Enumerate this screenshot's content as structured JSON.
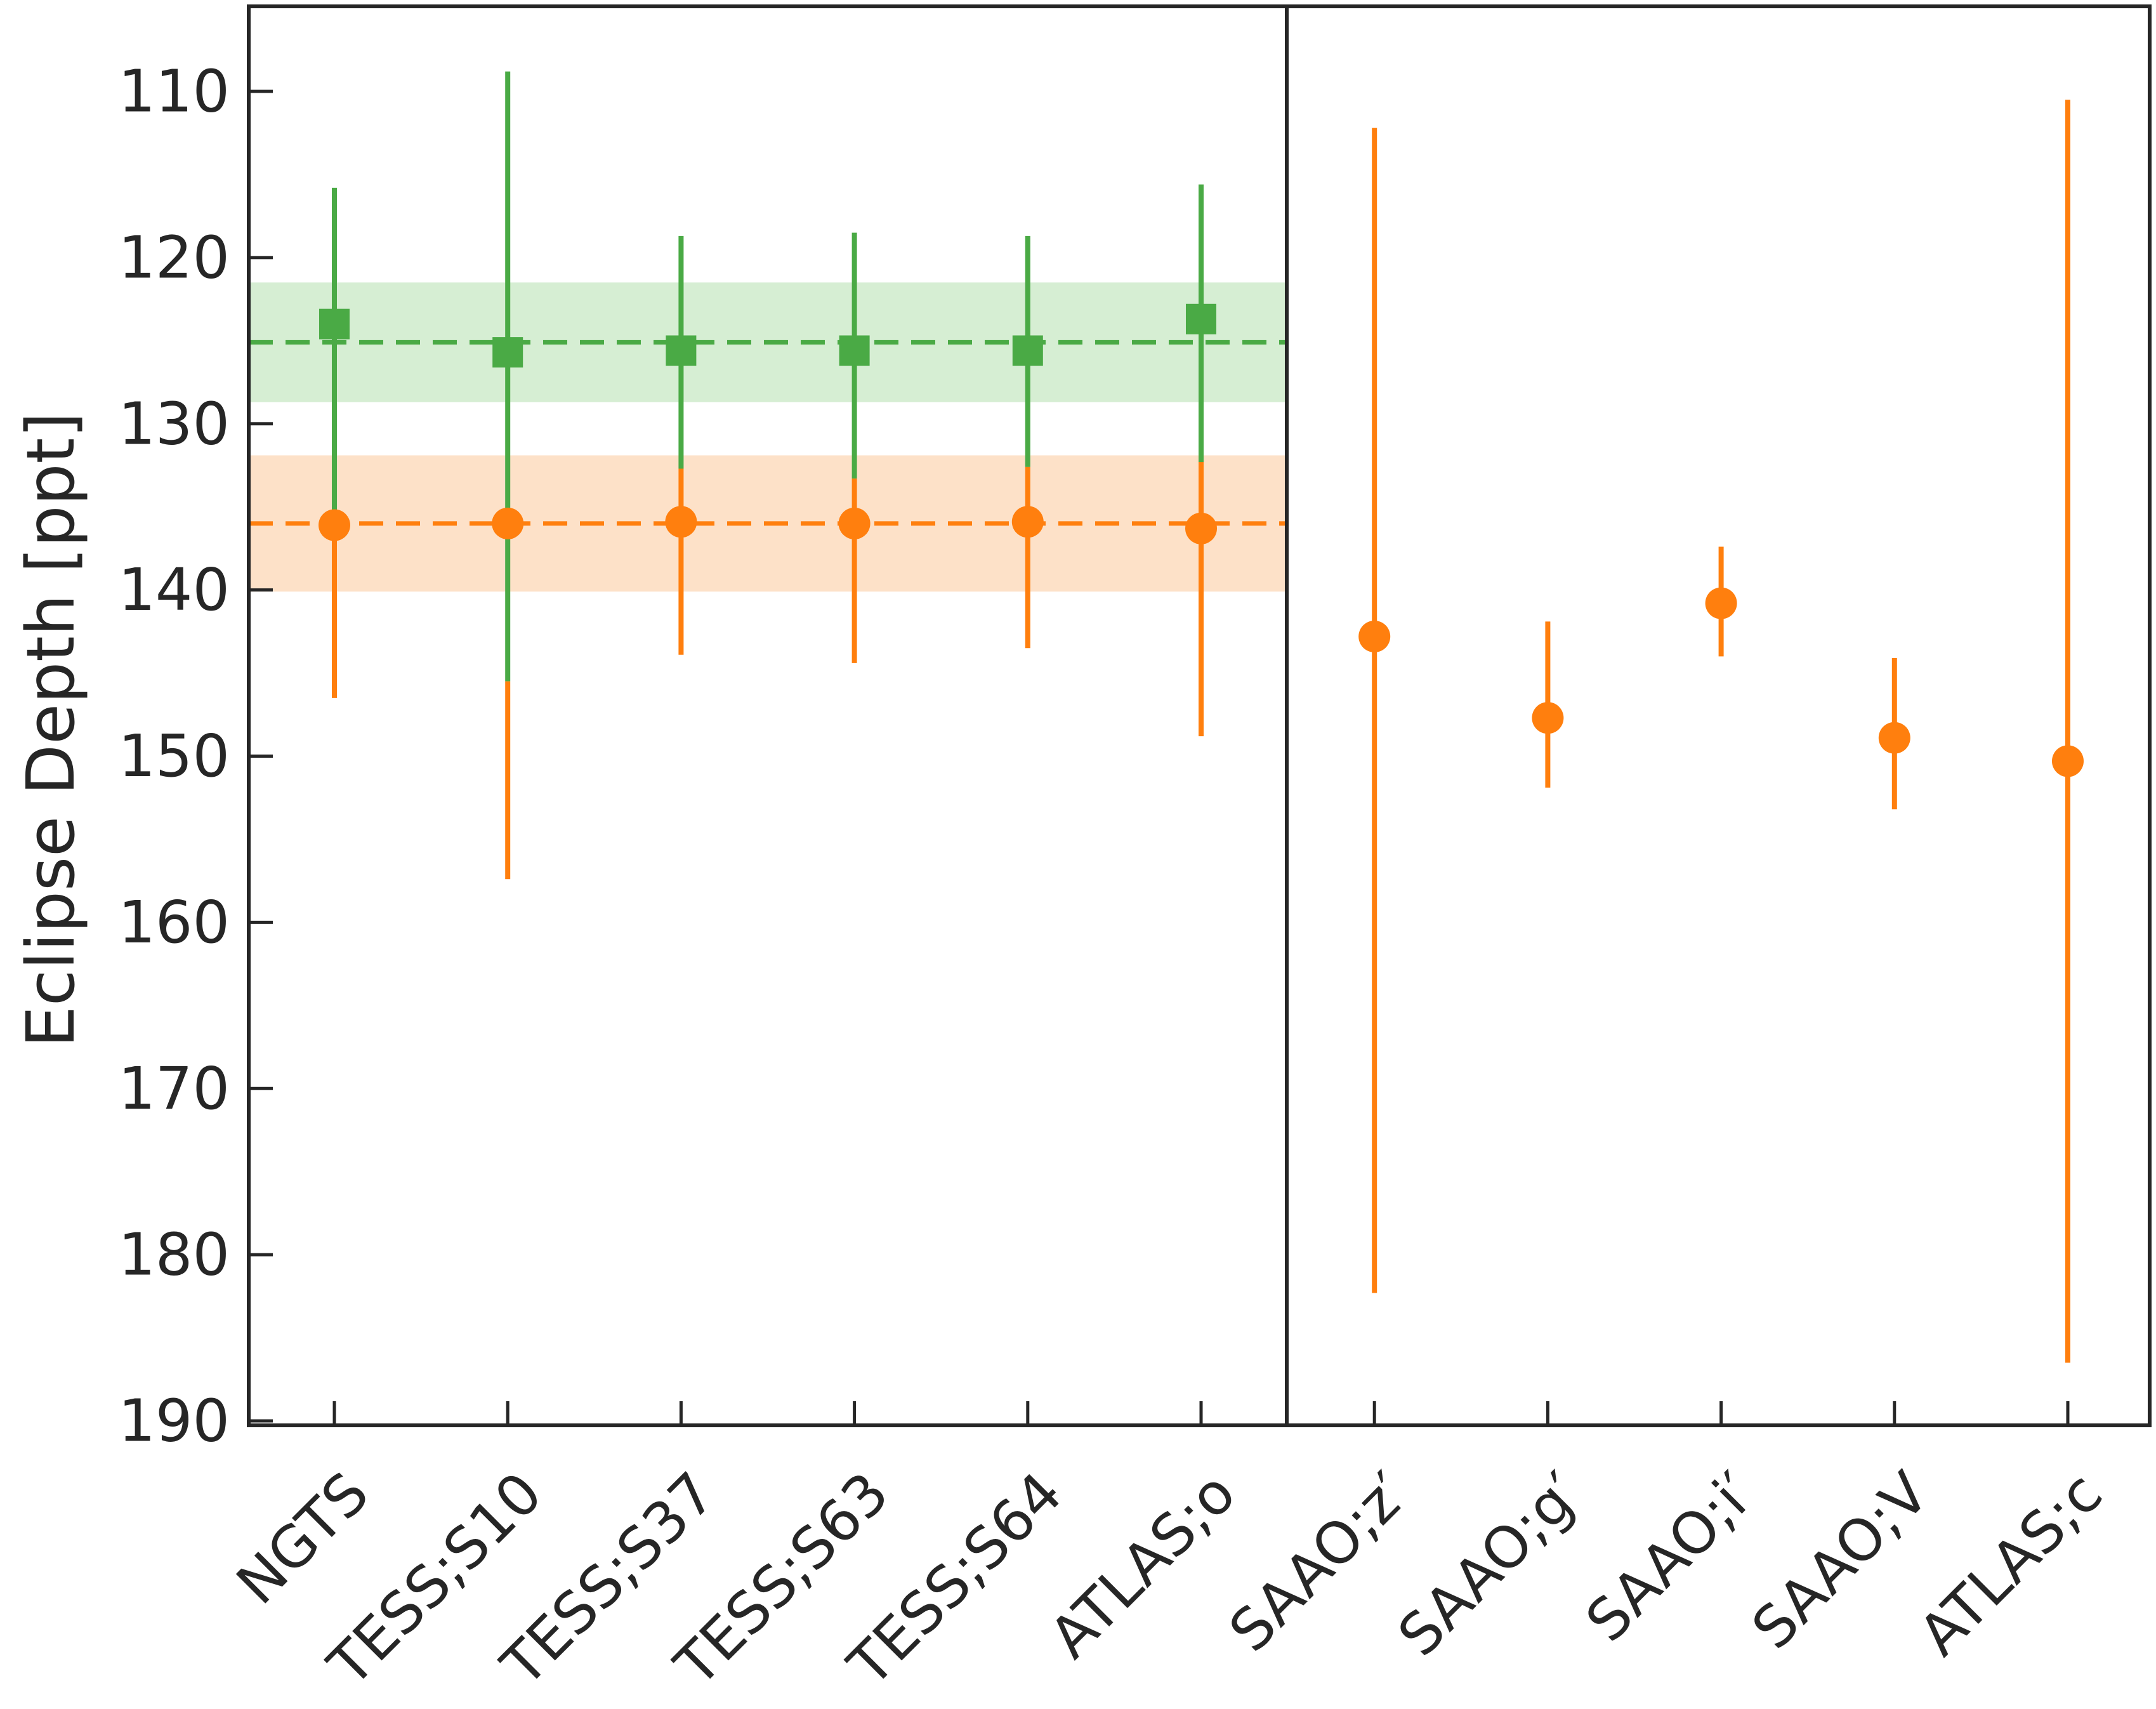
{
  "chart_data": {
    "type": "scatter",
    "title": "",
    "xlabel": "",
    "ylabel": "Eclipse Depth [ppt]",
    "ylim": [
      105,
      190.5
    ],
    "y_inverted": true,
    "yticks": [
      110,
      120,
      130,
      140,
      150,
      160,
      170,
      180,
      190
    ],
    "categories": [
      "NGTS",
      "TESS;S10",
      "TESS;S37",
      "TESS;S63",
      "TESS;S64",
      "ATLAS;o",
      "SAAO;z′",
      "SAAO;g′",
      "SAAO;i′",
      "SAAO;V",
      "ATLAS;c"
    ],
    "divider_after_index": 5,
    "grid": false,
    "legend": "none",
    "series": [
      {
        "color": "#4aaa45",
        "marker": "square",
        "points": [
          {
            "category": "NGTS",
            "y": 124.0,
            "err_low": 115.8,
            "err_high": 135.6
          },
          {
            "category": "TESS;S10",
            "y": 125.7,
            "err_low": 108.8,
            "err_high": 145.5
          },
          {
            "category": "TESS;S37",
            "y": 125.6,
            "err_low": 118.7,
            "err_high": 132.7
          },
          {
            "category": "TESS;S63",
            "y": 125.6,
            "err_low": 118.5,
            "err_high": 133.3
          },
          {
            "category": "TESS;S64",
            "y": 125.6,
            "err_low": 118.7,
            "err_high": 132.6
          },
          {
            "category": "ATLAS;o",
            "y": 123.7,
            "err_low": 115.6,
            "err_high": 132.3
          }
        ],
        "mean": 125.1,
        "band": [
          121.5,
          128.7
        ]
      },
      {
        "color": "#ff7f0e",
        "marker": "circle",
        "points": [
          {
            "category": "NGTS",
            "y": 136.1,
            "err_low": 135.6,
            "err_high": 146.5
          },
          {
            "category": "TESS;S10",
            "y": 136.0,
            "err_low": 145.5,
            "err_high": 157.4
          },
          {
            "category": "TESS;S37",
            "y": 135.9,
            "err_low": 132.7,
            "err_high": 143.9
          },
          {
            "category": "TESS;S63",
            "y": 136.0,
            "err_low": 133.3,
            "err_high": 144.4
          },
          {
            "category": "TESS;S64",
            "y": 135.9,
            "err_low": 132.6,
            "err_high": 143.5
          },
          {
            "category": "ATLAS;o",
            "y": 136.3,
            "err_low": 132.3,
            "err_high": 148.8
          },
          {
            "category": "SAAO;z′",
            "y": 142.8,
            "err_low": 112.2,
            "err_high": 182.3
          },
          {
            "category": "SAAO;g′",
            "y": 147.7,
            "err_low": 141.9,
            "err_high": 151.9
          },
          {
            "category": "SAAO;i′",
            "y": 140.8,
            "err_low": 137.4,
            "err_high": 144.0
          },
          {
            "category": "SAAO;V",
            "y": 148.9,
            "err_low": 144.1,
            "err_high": 153.2
          },
          {
            "category": "ATLAS;c",
            "y": 150.3,
            "err_low": 110.5,
            "err_high": 186.5
          }
        ],
        "mean": 136.0,
        "band": [
          131.9,
          140.1
        ]
      }
    ]
  }
}
